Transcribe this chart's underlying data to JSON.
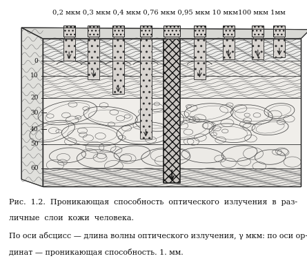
{
  "title_top": "0,2 мкм 0,3 мкм 0,4 мкм 0,76 мкм 0,95 мкм 10 мкм100 мкм 1мм",
  "y_tick_labels": [
    "0",
    "10",
    "20",
    "30",
    "40",
    "50",
    "60"
  ],
  "caption_line1": "Рис.  1.2.  Проникающая  способность  оптического  излучения  в  раз-",
  "caption_line2": "личные  слои  кожи  человека.",
  "caption_line3": "По оси абсцисс — длина волны оптического излучения, γ мкм: по оси ор-",
  "caption_line4": "динат — проникающая способность. 1. мм.",
  "background_color": "#ffffff",
  "figure_width": 4.45,
  "figure_height": 3.94,
  "dpi": 100,
  "font_size_top": 7.2,
  "font_size_caption": 8.0,
  "font_size_ytick": 6.5
}
